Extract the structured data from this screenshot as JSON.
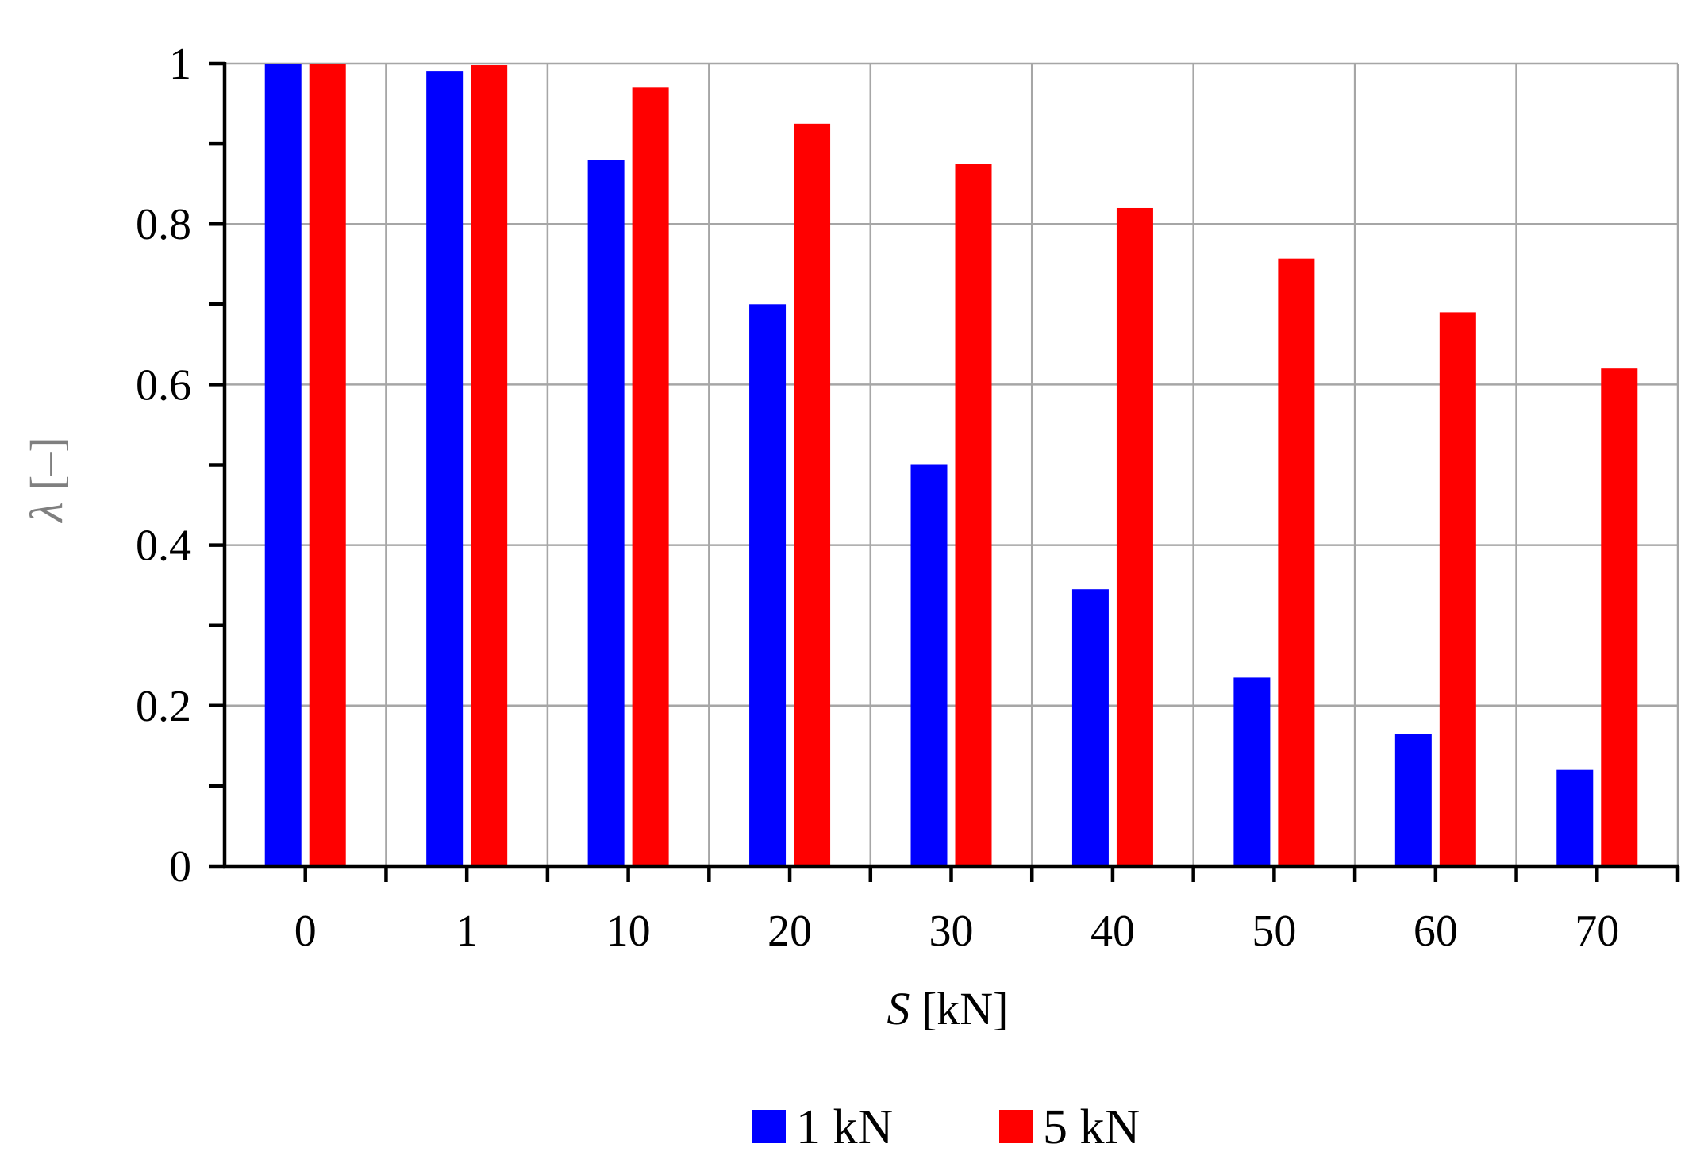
{
  "chart_data": {
    "type": "bar",
    "title": "",
    "xlabel": {
      "symbol": "S",
      "unit": " [kN]"
    },
    "ylabel": {
      "symbol": "λ",
      "unit": " [–]"
    },
    "categories": [
      "0",
      "1",
      "10",
      "20",
      "30",
      "40",
      "50",
      "60",
      "70"
    ],
    "series": [
      {
        "name": "1 kN",
        "color": "#0000ff",
        "values": [
          1.0,
          0.99,
          0.88,
          0.7,
          0.5,
          0.345,
          0.235,
          0.165,
          0.12
        ]
      },
      {
        "name": "5 kN",
        "color": "#ff0000",
        "values": [
          1.0,
          0.998,
          0.97,
          0.925,
          0.875,
          0.82,
          0.757,
          0.69,
          0.62
        ]
      }
    ],
    "ylim": [
      0,
      1
    ],
    "yticks": [
      "0",
      "0.2",
      "0.4",
      "0.6",
      "0.8",
      "1"
    ],
    "ytick_values": [
      0,
      0.2,
      0.4,
      0.6,
      0.8,
      1
    ],
    "yminor_step": 0.1,
    "grid": true,
    "legend_position": "bottom-center"
  }
}
